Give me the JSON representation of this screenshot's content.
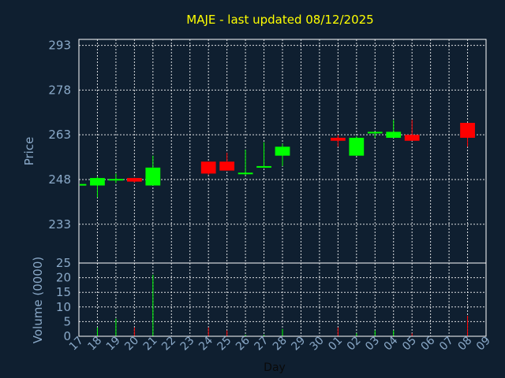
{
  "chart_data": {
    "type": "candlestick",
    "title": "MAJE - last updated 08/12/2025",
    "xlabel": "Day",
    "price_panel": {
      "ylabel": "Price",
      "ylim": [
        220,
        295
      ],
      "yticks": [
        233,
        248,
        263,
        278,
        293
      ]
    },
    "volume_panel": {
      "ylabel": "Volume (0000)",
      "ylim": [
        0,
        25
      ],
      "yticks": [
        0,
        5,
        10,
        15,
        20,
        25
      ]
    },
    "x_tick_labels": [
      "17",
      "18",
      "19",
      "20",
      "21",
      "22",
      "23",
      "24",
      "25",
      "26",
      "27",
      "28",
      "29",
      "30",
      "01",
      "02",
      "03",
      "04",
      "05",
      "06",
      "07",
      "08",
      "09"
    ],
    "colors": {
      "up": "#00ff00",
      "down": "#ff0000",
      "background": "#0f1f30",
      "plot": "#0f1f30",
      "grid": "#ffffff",
      "text": "#8aa9c8",
      "title": "#ffff00"
    },
    "candles": [
      {
        "x": 17,
        "open": 246.0,
        "close": 246.5,
        "high": 246.5,
        "low": 245.8,
        "volume": 0
      },
      {
        "x": 18,
        "open": 246.0,
        "close": 248.5,
        "high": 249.0,
        "low": 242.0,
        "volume": 3
      },
      {
        "x": 19,
        "open": 248.0,
        "close": 248.2,
        "high": 250.0,
        "low": 246.8,
        "volume": 6
      },
      {
        "x": 20,
        "open": 248.5,
        "close": 247.3,
        "high": 248.6,
        "low": 247.0,
        "volume": 3
      },
      {
        "x": 21,
        "open": 246.0,
        "close": 252.0,
        "high": 256.0,
        "low": 246.0,
        "volume": 21
      },
      {
        "x": 24,
        "open": 254.0,
        "close": 250.0,
        "high": 254.0,
        "low": 249.5,
        "volume": 3
      },
      {
        "x": 25,
        "open": 254.0,
        "close": 251.0,
        "high": 257.0,
        "low": 251.0,
        "volume": 2
      },
      {
        "x": 26,
        "open": 249.8,
        "close": 250.3,
        "high": 258.0,
        "low": 249.5,
        "volume": 0.5
      },
      {
        "x": 27,
        "open": 252.0,
        "close": 252.5,
        "high": 260.5,
        "low": 252.0,
        "volume": 0.5
      },
      {
        "x": 28,
        "open": 256.0,
        "close": 259.0,
        "high": 260.0,
        "low": 252.5,
        "volume": 2.5
      },
      {
        "x": 1,
        "open": 262.0,
        "close": 261.0,
        "high": 263.0,
        "low": 259.0,
        "volume": 3
      },
      {
        "x": 2,
        "open": 256.0,
        "close": 262.0,
        "high": 262.5,
        "low": 256.0,
        "volume": 1
      },
      {
        "x": 3,
        "open": 263.5,
        "close": 264.0,
        "high": 264.0,
        "low": 262.0,
        "volume": 2
      },
      {
        "x": 4,
        "open": 262.0,
        "close": 264.0,
        "high": 268.0,
        "low": 262.0,
        "volume": 2
      },
      {
        "x": 5,
        "open": 263.0,
        "close": 261.0,
        "high": 268.0,
        "low": 261.0,
        "volume": 1
      },
      {
        "x": 8,
        "open": 267.0,
        "close": 262.0,
        "high": 267.0,
        "low": 259.0,
        "volume": 7
      }
    ]
  }
}
